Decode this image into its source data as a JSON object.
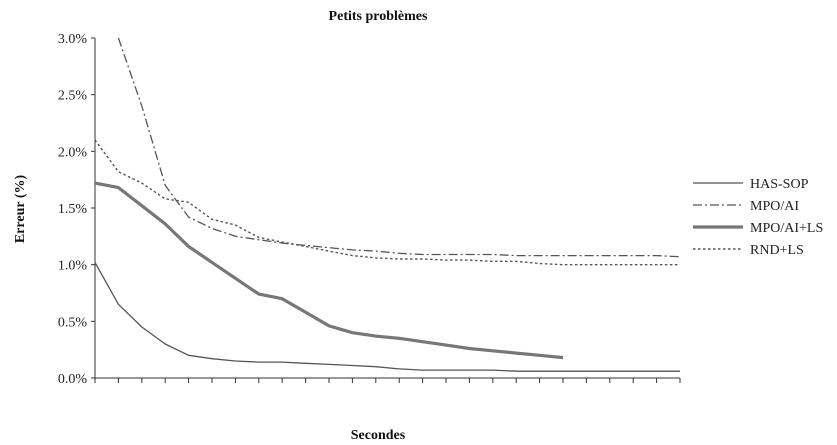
{
  "chart_data": {
    "type": "line",
    "title": "Petits problèmes",
    "xlabel": "Secondes",
    "ylabel": "Erreur (%)",
    "ylim": [
      0,
      3.0
    ],
    "yticks": [
      "0.0%",
      "0.5%",
      "1.0%",
      "1.5%",
      "2.0%",
      "2.5%",
      "3.0%"
    ],
    "x_tick_count": 25,
    "legend_position": "right",
    "x": [
      0,
      1,
      2,
      3,
      4,
      5,
      6,
      7,
      8,
      9,
      10,
      11,
      12,
      13,
      14,
      15,
      16,
      17,
      18,
      19,
      20,
      21,
      22,
      23,
      24,
      25
    ],
    "series": [
      {
        "name": "HAS-SOP",
        "style": "solid-thin",
        "color": "#555555",
        "values": [
          1.02,
          0.65,
          0.45,
          0.3,
          0.2,
          0.17,
          0.15,
          0.14,
          0.14,
          0.13,
          0.12,
          0.11,
          0.1,
          0.08,
          0.07,
          0.07,
          0.07,
          0.07,
          0.06,
          0.06,
          0.06,
          0.06,
          0.06,
          0.06,
          0.06,
          0.06
        ]
      },
      {
        "name": "MPO/AI",
        "style": "dashdot",
        "color": "#555555",
        "values": [
          null,
          3.0,
          2.4,
          1.7,
          1.42,
          1.32,
          1.25,
          1.22,
          1.19,
          1.17,
          1.15,
          1.13,
          1.12,
          1.1,
          1.09,
          1.09,
          1.09,
          1.09,
          1.08,
          1.08,
          1.08,
          1.08,
          1.08,
          1.08,
          1.08,
          1.07
        ]
      },
      {
        "name": "MPO/AI+LS",
        "style": "solid-thick",
        "color": "#777777",
        "values": [
          1.72,
          1.68,
          1.52,
          1.36,
          1.16,
          1.02,
          0.88,
          0.74,
          0.7,
          0.58,
          0.46,
          0.4,
          0.37,
          0.35,
          0.32,
          0.29,
          0.26,
          0.24,
          0.22,
          0.2,
          0.18,
          null,
          null,
          null,
          null,
          null
        ]
      },
      {
        "name": "RND+LS",
        "style": "dotted",
        "color": "#555555",
        "values": [
          2.1,
          1.82,
          1.72,
          1.58,
          1.55,
          1.4,
          1.35,
          1.24,
          1.2,
          1.16,
          1.12,
          1.08,
          1.06,
          1.05,
          1.05,
          1.04,
          1.04,
          1.03,
          1.03,
          1.01,
          1.0,
          1.0,
          1.0,
          1.0,
          1.0,
          1.0
        ]
      }
    ]
  }
}
